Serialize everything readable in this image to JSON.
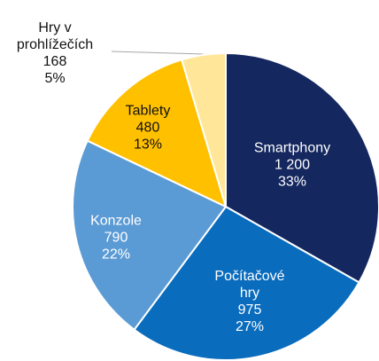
{
  "chart_data": {
    "type": "pie",
    "categories": [
      "Smartphony",
      "Počítačové hry",
      "Konzole",
      "Tablety",
      "Hry v prohlížečích"
    ],
    "values": [
      1200,
      975,
      790,
      480,
      168
    ],
    "value_labels": [
      "1 200",
      "975",
      "790",
      "480",
      "168"
    ],
    "percentages": [
      33,
      27,
      22,
      13,
      5
    ],
    "percentage_labels": [
      "33%",
      "27%",
      "22%",
      "13%",
      "5%"
    ],
    "colors": [
      "#14275f",
      "#0a6cbd",
      "#5b9bd5",
      "#ffc000",
      "#ffe699"
    ]
  }
}
